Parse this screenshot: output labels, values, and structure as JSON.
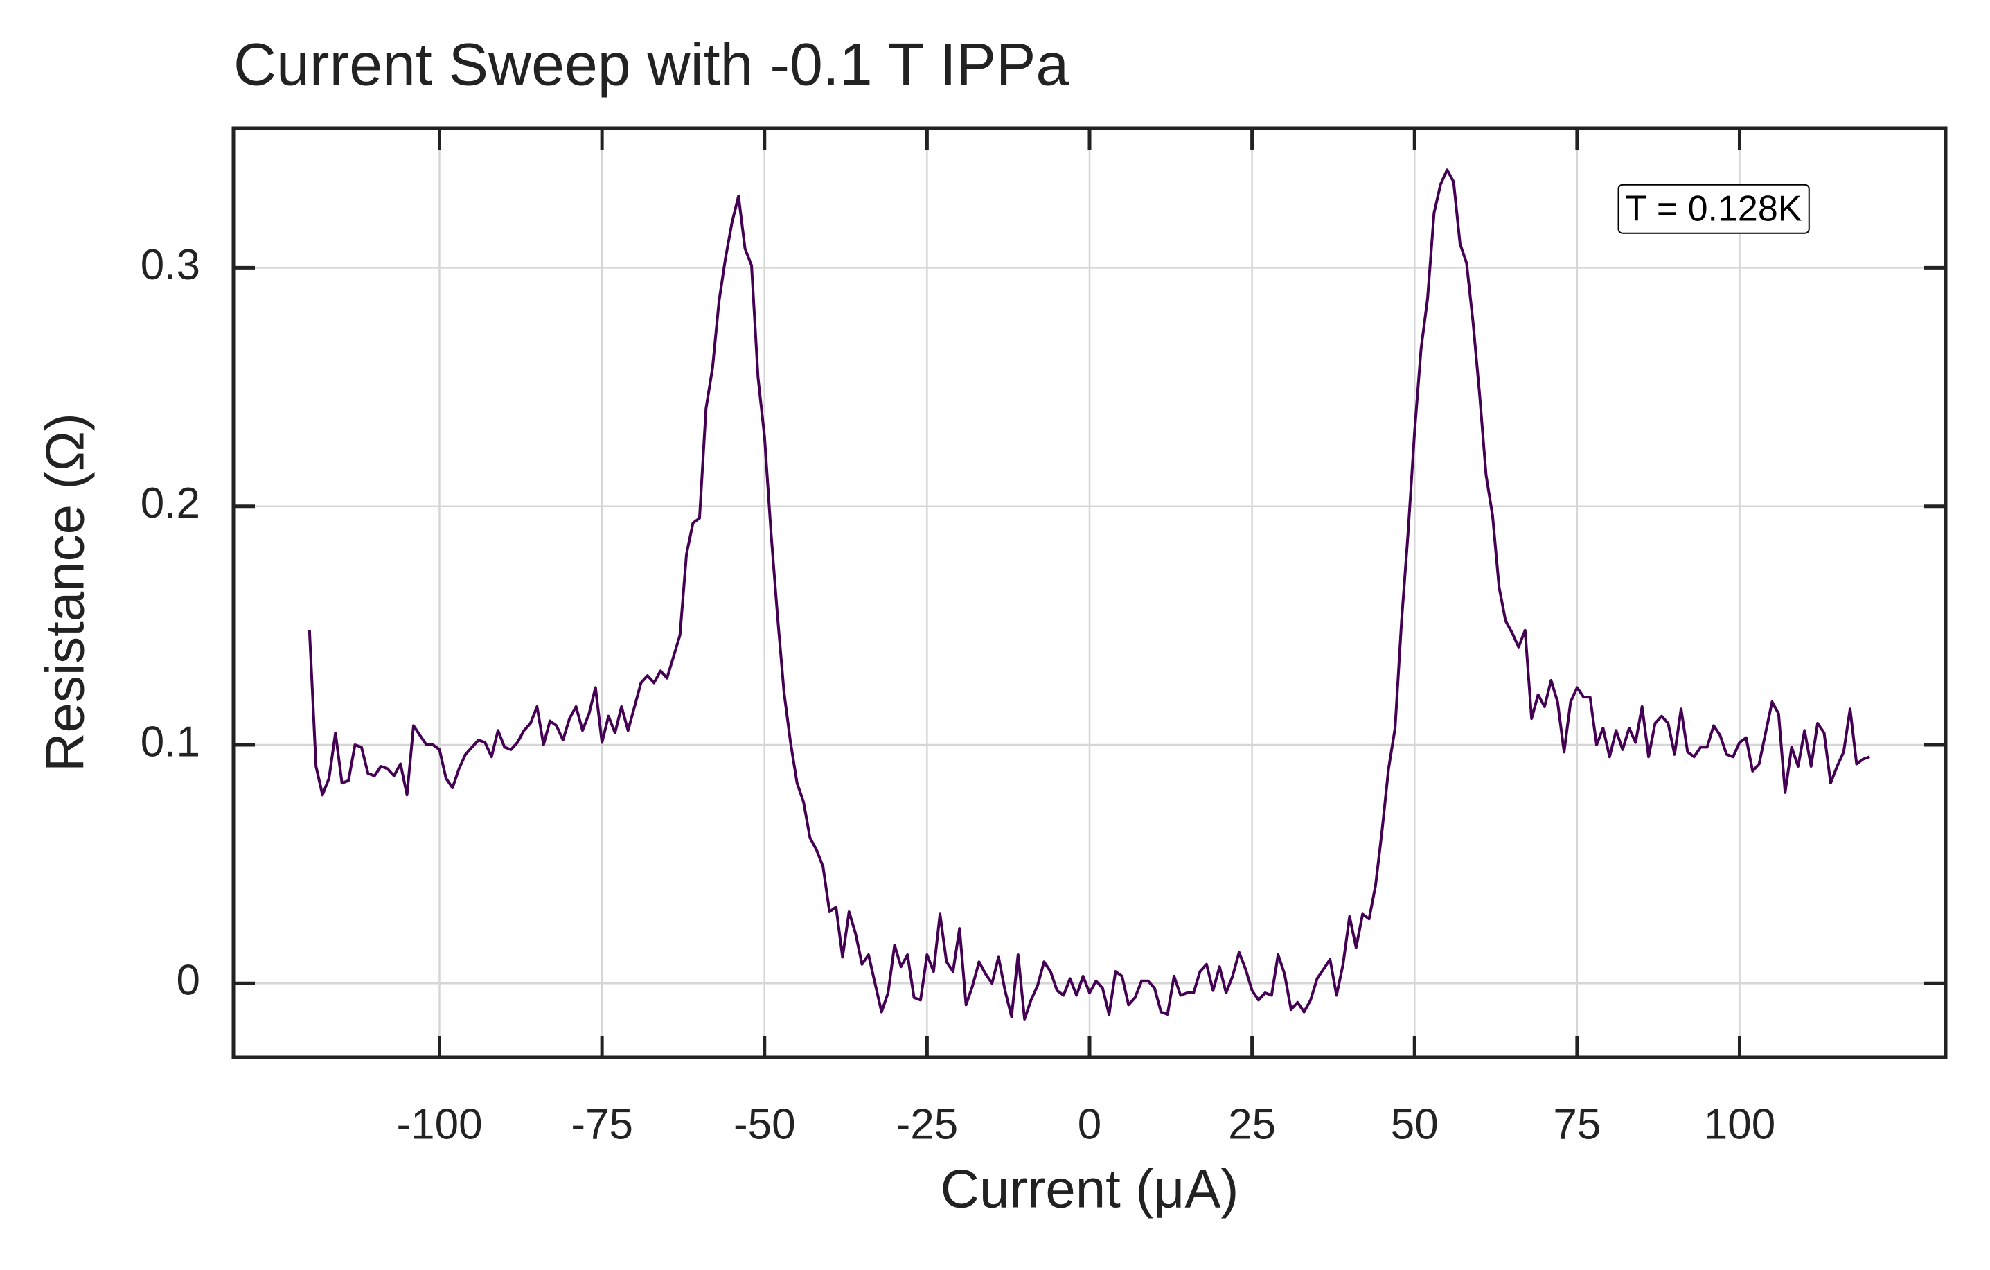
{
  "chart_data": {
    "type": "line",
    "title": "Current Sweep with -0.1 T IPPa",
    "x_label": "Current (μA)",
    "y_label": "Resistance (Ω)",
    "annotation": "T = 0.128K",
    "color": "#440154",
    "grid": true,
    "xlim": [
      -131.7,
      131.7
    ],
    "ylim": [
      -0.031,
      0.3585
    ],
    "xticks": [
      -100,
      -75,
      -50,
      -25,
      0,
      25,
      50,
      75,
      100
    ],
    "yticks": [
      0,
      0.1,
      0.2,
      0.3
    ],
    "x": [
      -120,
      -119,
      -118,
      -117,
      -116,
      -115,
      -114,
      -113,
      -112,
      -111,
      -110,
      -109,
      -108,
      -107,
      -106,
      -105,
      -104,
      -103,
      -102,
      -101,
      -100,
      -99,
      -98,
      -97,
      -96,
      -95,
      -94,
      -93,
      -92,
      -91,
      -90,
      -89,
      -88,
      -87,
      -86,
      -85,
      -84,
      -83,
      -82,
      -81,
      -80,
      -79,
      -78,
      -77,
      -76,
      -75,
      -74,
      -73,
      -72,
      -71,
      -70,
      -69,
      -68,
      -67,
      -66,
      -65,
      -64,
      -63,
      -62,
      -61,
      -60,
      -59,
      -58,
      -57,
      -56,
      -55,
      -54,
      -53,
      -52,
      -51,
      -50,
      -49,
      -48,
      -47,
      -46,
      -45,
      -44,
      -43,
      -42,
      -41,
      -40,
      -39,
      -38,
      -37,
      -36,
      -35,
      -34,
      -33,
      -32,
      -31,
      -30,
      -29,
      -28,
      -27,
      -26,
      -25,
      -24,
      -23,
      -22,
      -21,
      -20,
      -19,
      -18,
      -17,
      -16,
      -15,
      -14,
      -13,
      -12,
      -11,
      -10,
      -9,
      -8,
      -7,
      -6,
      -5,
      -4,
      -3,
      -2,
      -1,
      0,
      1,
      2,
      3,
      4,
      5,
      6,
      7,
      8,
      9,
      10,
      11,
      12,
      13,
      14,
      15,
      16,
      17,
      18,
      19,
      20,
      21,
      22,
      23,
      24,
      25,
      26,
      27,
      28,
      29,
      30,
      31,
      32,
      33,
      34,
      35,
      36,
      37,
      38,
      39,
      40,
      41,
      42,
      43,
      44,
      45,
      46,
      47,
      48,
      49,
      50,
      51,
      52,
      53,
      54,
      55,
      56,
      57,
      58,
      59,
      60,
      61,
      62,
      63,
      64,
      65,
      66,
      67,
      68,
      69,
      70,
      71,
      72,
      73,
      74,
      75,
      76,
      77,
      78,
      79,
      80,
      81,
      82,
      83,
      84,
      85,
      86,
      87,
      88,
      89,
      90,
      91,
      92,
      93,
      94,
      95,
      96,
      97,
      98,
      99,
      100,
      101,
      102,
      103,
      104,
      105,
      106,
      107,
      108,
      109,
      110,
      111,
      112,
      113,
      114,
      115,
      116,
      117,
      118,
      119,
      120
    ],
    "values": [
      0.148,
      0.091,
      0.079,
      0.086,
      0.105,
      0.084,
      0.085,
      0.1,
      0.099,
      0.088,
      0.087,
      0.091,
      0.09,
      0.087,
      0.092,
      0.079,
      0.108,
      0.104,
      0.1,
      0.1,
      0.098,
      0.086,
      0.082,
      0.09,
      0.096,
      0.099,
      0.102,
      0.101,
      0.095,
      0.106,
      0.099,
      0.098,
      0.101,
      0.106,
      0.109,
      0.116,
      0.1,
      0.11,
      0.108,
      0.102,
      0.111,
      0.116,
      0.106,
      0.113,
      0.124,
      0.101,
      0.112,
      0.105,
      0.116,
      0.106,
      0.116,
      0.126,
      0.129,
      0.126,
      0.131,
      0.128,
      0.137,
      0.146,
      0.18,
      0.193,
      0.195,
      0.241,
      0.258,
      0.286,
      0.304,
      0.319,
      0.33,
      0.308,
      0.301,
      0.254,
      0.229,
      0.189,
      0.154,
      0.122,
      0.101,
      0.084,
      0.076,
      0.061,
      0.056,
      0.049,
      0.03,
      0.032,
      0.011,
      0.03,
      0.021,
      0.008,
      0.012,
      0.0,
      -0.012,
      -0.004,
      0.016,
      0.007,
      0.012,
      -0.006,
      -0.007,
      0.012,
      0.005,
      0.029,
      0.009,
      0.005,
      0.023,
      -0.009,
      -0.001,
      0.009,
      0.004,
      0.0,
      0.011,
      -0.003,
      -0.014,
      0.012,
      -0.015,
      -0.007,
      -0.001,
      0.009,
      0.005,
      -0.003,
      -0.005,
      0.002,
      -0.005,
      0.003,
      -0.004,
      0.001,
      -0.002,
      -0.013,
      0.005,
      0.003,
      -0.009,
      -0.006,
      0.001,
      0.001,
      -0.002,
      -0.012,
      -0.013,
      0.003,
      -0.005,
      -0.004,
      -0.004,
      0.005,
      0.008,
      -0.003,
      0.007,
      -0.004,
      0.003,
      0.013,
      0.006,
      -0.003,
      -0.007,
      -0.004,
      -0.005,
      0.012,
      0.004,
      -0.011,
      -0.008,
      -0.012,
      -0.007,
      0.002,
      0.006,
      0.01,
      -0.005,
      0.008,
      0.028,
      0.015,
      0.029,
      0.027,
      0.041,
      0.064,
      0.09,
      0.107,
      0.152,
      0.189,
      0.231,
      0.266,
      0.287,
      0.323,
      0.335,
      0.341,
      0.336,
      0.31,
      0.302,
      0.277,
      0.247,
      0.213,
      0.196,
      0.166,
      0.152,
      0.147,
      0.141,
      0.148,
      0.111,
      0.121,
      0.116,
      0.127,
      0.118,
      0.097,
      0.118,
      0.124,
      0.12,
      0.12,
      0.1,
      0.107,
      0.095,
      0.106,
      0.098,
      0.107,
      0.101,
      0.116,
      0.095,
      0.109,
      0.112,
      0.109,
      0.096,
      0.115,
      0.097,
      0.095,
      0.099,
      0.099,
      0.108,
      0.104,
      0.096,
      0.095,
      0.101,
      0.103,
      0.089,
      0.092,
      0.105,
      0.118,
      0.113,
      0.08,
      0.099,
      0.091,
      0.106,
      0.091,
      0.109,
      0.105,
      0.084,
      0.091,
      0.097,
      0.115,
      0.092,
      0.094,
      0.095
    ]
  }
}
